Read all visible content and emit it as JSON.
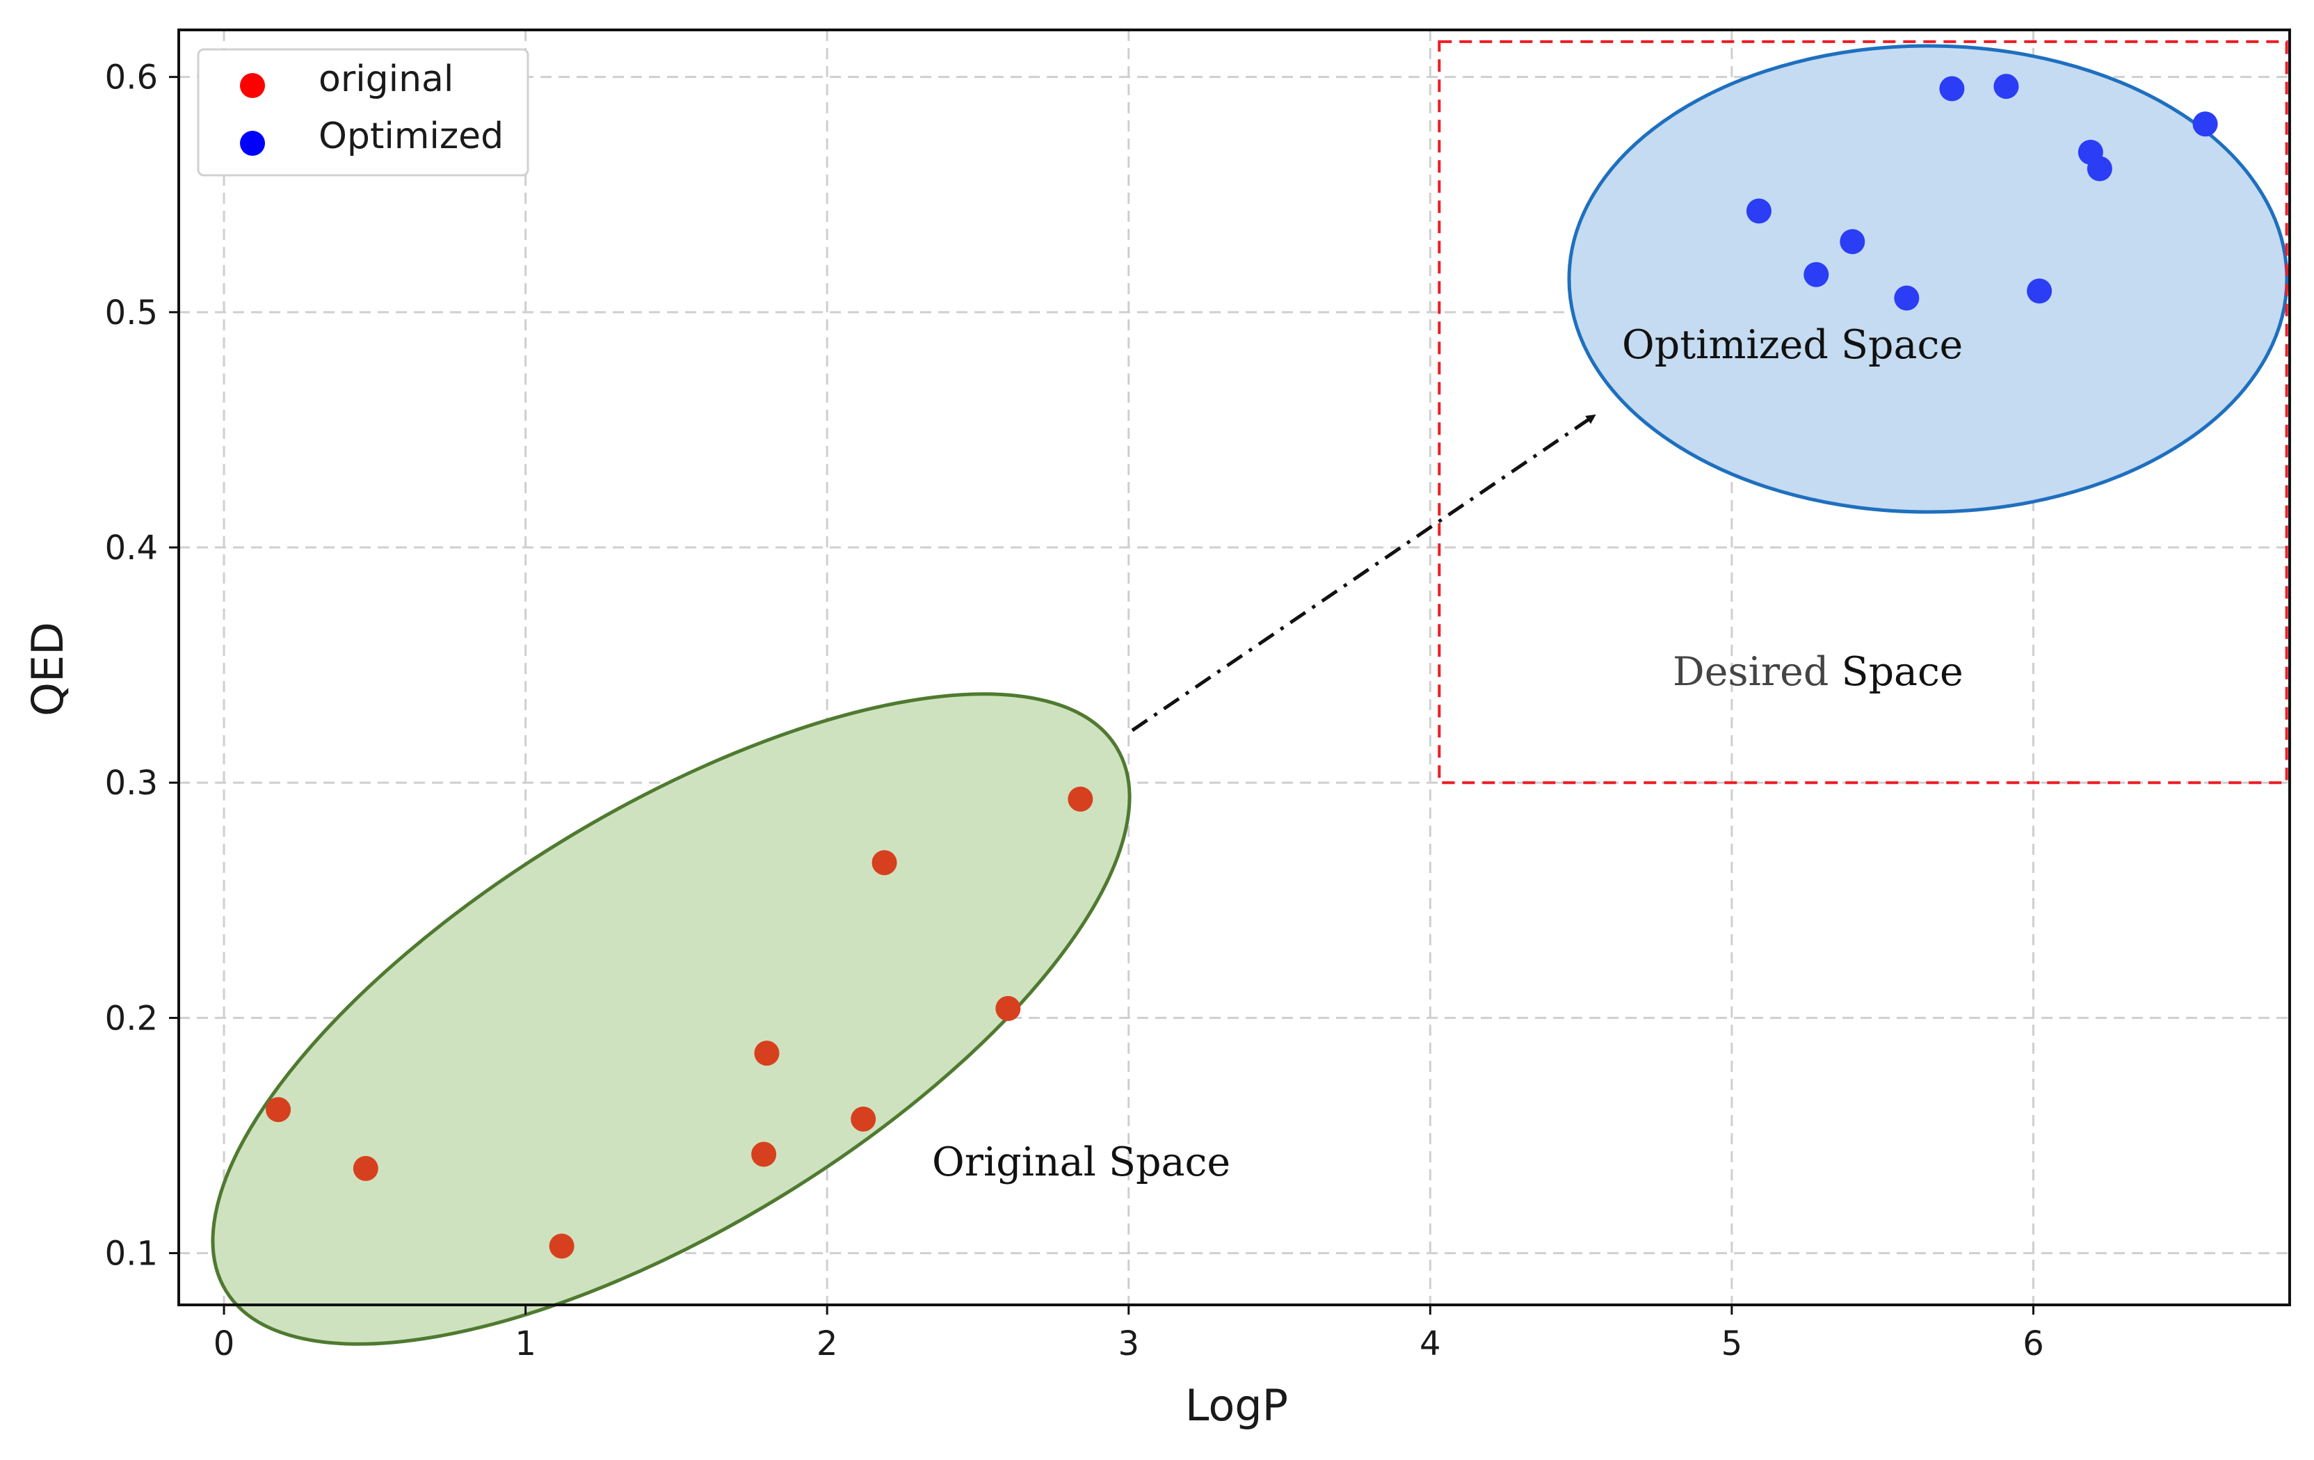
{
  "chart_data": {
    "type": "scatter",
    "xlabel": "LogP",
    "ylabel": "QED",
    "xlim": [
      -0.15,
      6.85
    ],
    "ylim": [
      0.078,
      0.62
    ],
    "x_ticks": [
      0,
      1,
      2,
      3,
      4,
      5,
      6
    ],
    "x_tick_labels": [
      "0",
      "1",
      "2",
      "3",
      "4",
      "5",
      "6"
    ],
    "y_ticks": [
      0.1,
      0.2,
      0.3,
      0.4,
      0.5,
      0.6
    ],
    "y_tick_labels": [
      "0.1",
      "0.2",
      "0.3",
      "0.4",
      "0.5",
      "0.6"
    ],
    "grid": true,
    "legend_position": "top-left",
    "legend": [
      {
        "label": "original",
        "color": "#ff0000"
      },
      {
        "label": "Optimized",
        "color": "#0000ff"
      }
    ],
    "series": [
      {
        "name": "original",
        "color": "#d7401e",
        "points": [
          {
            "x": 0.18,
            "y": 0.161
          },
          {
            "x": 0.47,
            "y": 0.136
          },
          {
            "x": 1.12,
            "y": 0.103
          },
          {
            "x": 1.79,
            "y": 0.142
          },
          {
            "x": 1.8,
            "y": 0.185
          },
          {
            "x": 2.12,
            "y": 0.157
          },
          {
            "x": 2.19,
            "y": 0.266
          },
          {
            "x": 2.6,
            "y": 0.204
          },
          {
            "x": 2.84,
            "y": 0.293
          }
        ]
      },
      {
        "name": "Optimized",
        "color": "#2b3df5",
        "points": [
          {
            "x": 5.09,
            "y": 0.543
          },
          {
            "x": 5.28,
            "y": 0.516
          },
          {
            "x": 5.4,
            "y": 0.53
          },
          {
            "x": 5.58,
            "y": 0.506
          },
          {
            "x": 5.73,
            "y": 0.595
          },
          {
            "x": 5.91,
            "y": 0.596
          },
          {
            "x": 6.02,
            "y": 0.509
          },
          {
            "x": 6.19,
            "y": 0.568
          },
          {
            "x": 6.22,
            "y": 0.561
          },
          {
            "x": 6.57,
            "y": 0.58
          }
        ]
      }
    ],
    "regions": [
      {
        "kind": "ellipse",
        "label": "Original Space",
        "fill": "#cfe2bf",
        "stroke": "#4f7a30"
      },
      {
        "kind": "ellipse",
        "label": "Optimized Space",
        "fill": "#c4dbf1",
        "stroke": "#1f6fbf"
      },
      {
        "kind": "dashed-rect",
        "label_parts": [
          "Desired",
          "Space"
        ],
        "stroke": "#ee1c24",
        "x_range": [
          4.03,
          6.84
        ],
        "y_range": [
          0.3,
          0.615
        ]
      }
    ],
    "arrow": {
      "from": "Original Space",
      "to": "Optimized Space",
      "style": "dash-dot"
    }
  }
}
